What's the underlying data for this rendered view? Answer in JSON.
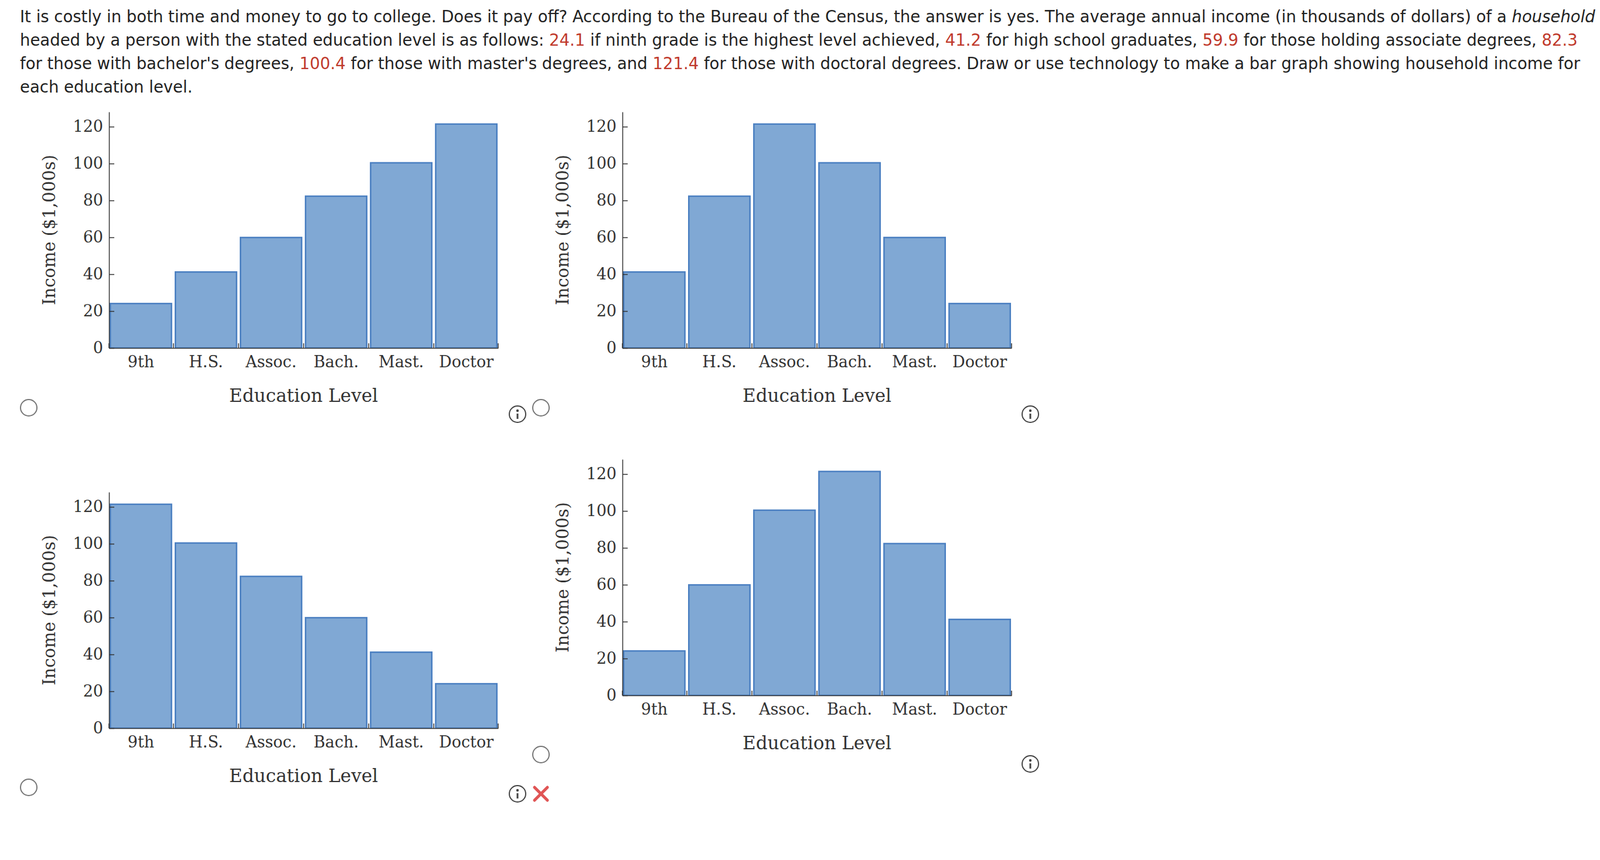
{
  "question": {
    "segments": [
      {
        "text": "It is costly in both time and money to go to college. Does it pay off? According to the Bureau of the Census, the answer is yes. The average annual income (in thousands of dollars) of a ",
        "style": "plain"
      },
      {
        "text": "household",
        "style": "italic"
      },
      {
        "text": " headed by a person with the stated education level is as follows: ",
        "style": "plain"
      },
      {
        "text": "24.1",
        "style": "red"
      },
      {
        "text": " if ninth grade is the highest level achieved, ",
        "style": "plain"
      },
      {
        "text": "41.2",
        "style": "red"
      },
      {
        "text": " for high school graduates, ",
        "style": "plain"
      },
      {
        "text": "59.9",
        "style": "red"
      },
      {
        "text": " for those holding associate degrees, ",
        "style": "plain"
      },
      {
        "text": "82.3",
        "style": "red"
      },
      {
        "text": " for those with bachelor's degrees, ",
        "style": "plain"
      },
      {
        "text": "100.4",
        "style": "red"
      },
      {
        "text": " for those with master's degrees, and ",
        "style": "plain"
      },
      {
        "text": "121.4",
        "style": "red"
      },
      {
        "text": " for those with doctoral degrees. Draw or use technology to make a bar graph showing household income for each education level.",
        "style": "plain"
      }
    ]
  },
  "chart_data": [
    {
      "type": "bar",
      "x_label": "Education Level",
      "y_label": "Income ($1,000s)",
      "categories": [
        "9th",
        "H.S.",
        "Assoc.",
        "Bach.",
        "Mast.",
        "Doctor"
      ],
      "values": [
        24.1,
        41.2,
        59.9,
        82.3,
        100.4,
        121.4
      ],
      "color": "#80a8d4",
      "ylim": [
        0,
        128
      ],
      "yticks": [
        0,
        20,
        40,
        60,
        80,
        100,
        120
      ],
      "grid": false
    },
    {
      "type": "bar",
      "x_label": "Education Level",
      "y_label": "Income ($1,000s)",
      "categories": [
        "9th",
        "H.S.",
        "Assoc.",
        "Bach.",
        "Mast.",
        "Doctor"
      ],
      "values": [
        41.2,
        82.3,
        121.4,
        100.4,
        59.9,
        24.1
      ],
      "color": "#80a8d4",
      "ylim": [
        0,
        128
      ],
      "yticks": [
        0,
        20,
        40,
        60,
        80,
        100,
        120
      ],
      "grid": false
    },
    {
      "type": "bar",
      "x_label": "Education Level",
      "y_label": "Income ($1,000s)",
      "categories": [
        "9th",
        "H.S.",
        "Assoc.",
        "Bach.",
        "Mast.",
        "Doctor"
      ],
      "values": [
        121.4,
        100.4,
        82.3,
        59.9,
        41.2,
        24.1
      ],
      "color": "#80a8d4",
      "ylim": [
        0,
        128
      ],
      "yticks": [
        0,
        20,
        40,
        60,
        80,
        100,
        120
      ],
      "grid": false
    },
    {
      "type": "bar",
      "x_label": "Education Level",
      "y_label": "Income ($1,000s)",
      "categories": [
        "9th",
        "H.S.",
        "Assoc.",
        "Bach.",
        "Mast.",
        "Doctor"
      ],
      "values": [
        24.1,
        59.9,
        100.4,
        121.4,
        82.3,
        41.2
      ],
      "color": "#80a8d4",
      "ylim": [
        0,
        128
      ],
      "yticks": [
        0,
        20,
        40,
        60,
        80,
        100,
        120
      ],
      "grid": false
    }
  ]
}
